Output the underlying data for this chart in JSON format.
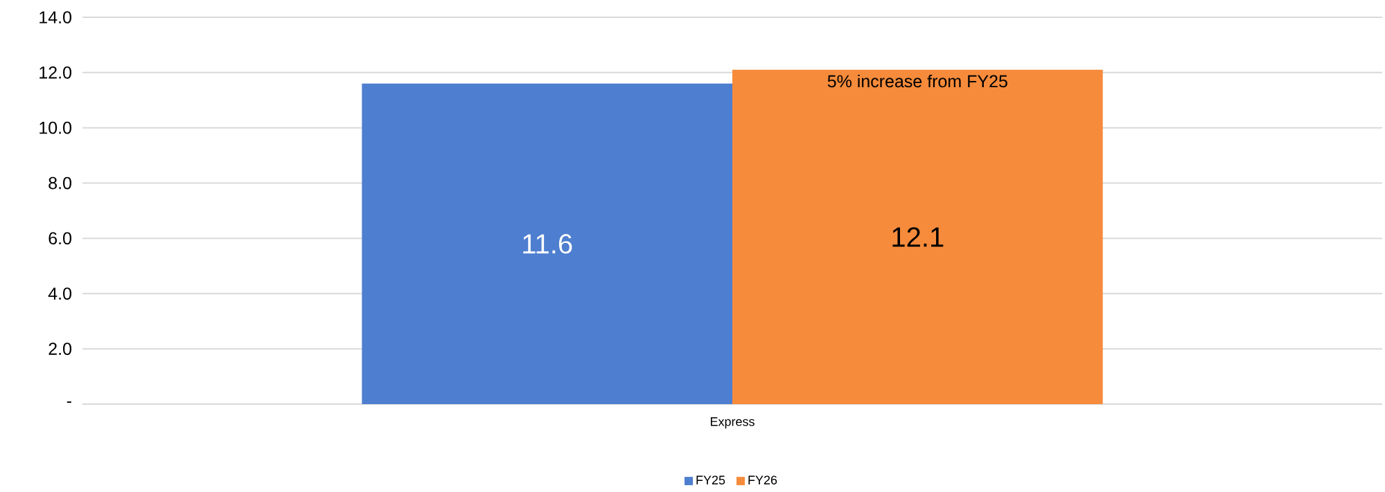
{
  "chart_data": {
    "type": "bar",
    "categories": [
      "Express"
    ],
    "series": [
      {
        "name": "FY25",
        "color": "#4e7ecf",
        "values": [
          11.6
        ]
      },
      {
        "name": "FY26",
        "color": "#f68b3b",
        "values": [
          12.1
        ]
      }
    ],
    "ylim": [
      0,
      14
    ],
    "yticks": [
      {
        "value": 0,
        "label": "-"
      },
      {
        "value": 2,
        "label": "2.0"
      },
      {
        "value": 4,
        "label": "4.0"
      },
      {
        "value": 6,
        "label": "6.0"
      },
      {
        "value": 8,
        "label": "8.0"
      },
      {
        "value": 10,
        "label": "10.0"
      },
      {
        "value": 12,
        "label": "12.0"
      },
      {
        "value": 14,
        "label": "14.0"
      }
    ],
    "grid": "y",
    "legend": "bottom",
    "data_labels": true,
    "annotations": [
      "5% increase from FY25"
    ]
  }
}
